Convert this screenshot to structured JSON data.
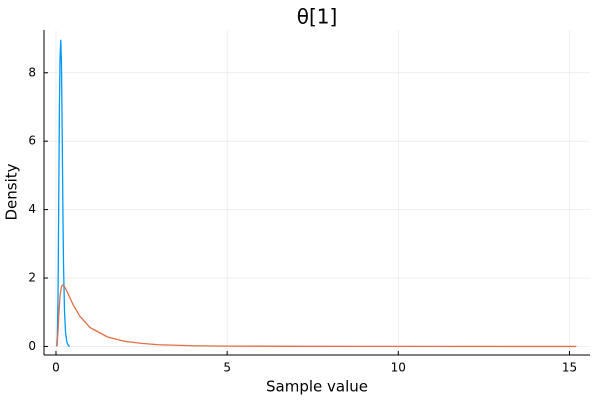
{
  "chart_data": {
    "type": "line",
    "title": "θ[1]",
    "xlabel": "Sample value",
    "ylabel": "Density",
    "xlim": [
      -0.35,
      15.6
    ],
    "ylim": [
      -0.25,
      9.25
    ],
    "xticks": [
      0,
      5,
      10,
      15
    ],
    "yticks": [
      0,
      2,
      4,
      6,
      8
    ],
    "grid": true,
    "legend": "none",
    "series": [
      {
        "color": "#009AFA",
        "points": [
          [
            0.02,
            0.0
          ],
          [
            0.04,
            0.3
          ],
          [
            0.06,
            1.5
          ],
          [
            0.08,
            4.2
          ],
          [
            0.1,
            7.0
          ],
          [
            0.12,
            8.5
          ],
          [
            0.14,
            8.95
          ],
          [
            0.16,
            8.3
          ],
          [
            0.18,
            6.4
          ],
          [
            0.2,
            4.2
          ],
          [
            0.22,
            2.4
          ],
          [
            0.25,
            1.0
          ],
          [
            0.28,
            0.4
          ],
          [
            0.32,
            0.12
          ],
          [
            0.36,
            0.03
          ],
          [
            0.4,
            0.0
          ]
        ]
      },
      {
        "color": "#E26F46",
        "points": [
          [
            0.03,
            0.0
          ],
          [
            0.06,
            0.45
          ],
          [
            0.09,
            1.05
          ],
          [
            0.12,
            1.5
          ],
          [
            0.16,
            1.75
          ],
          [
            0.2,
            1.8
          ],
          [
            0.26,
            1.73
          ],
          [
            0.35,
            1.55
          ],
          [
            0.5,
            1.22
          ],
          [
            0.7,
            0.88
          ],
          [
            1.0,
            0.55
          ],
          [
            1.5,
            0.28
          ],
          [
            2.0,
            0.15
          ],
          [
            2.5,
            0.09
          ],
          [
            3.0,
            0.05
          ],
          [
            4.0,
            0.02
          ],
          [
            5.0,
            0.01
          ],
          [
            7.0,
            0.004
          ],
          [
            10.0,
            0.001
          ],
          [
            15.2,
            0.0
          ]
        ]
      }
    ]
  }
}
